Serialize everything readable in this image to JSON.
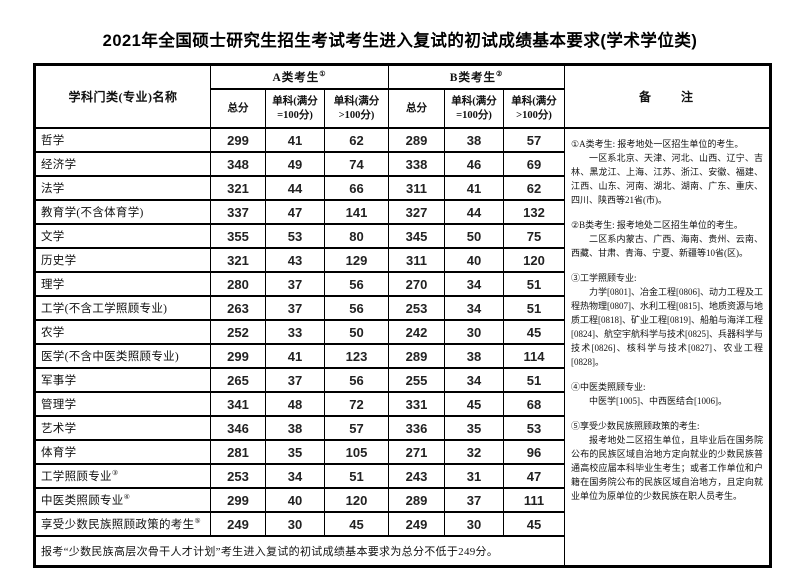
{
  "title": "2021年全国硕士研究生招生考试考生进入复试的初试成绩基本要求(学术学位类)",
  "table": {
    "header": {
      "category": "学科门类(专业)名称",
      "group_a": {
        "label": "A类考生",
        "sup": "①"
      },
      "group_b": {
        "label": "B类考生",
        "sup": "②"
      },
      "sub_columns": [
        "总分",
        "单科(满分\n=100分)",
        "单科(满分\n>100分)"
      ],
      "notes_label": "备　　注"
    },
    "rows": [
      {
        "label": "哲学",
        "sup": "",
        "values": [
          299,
          41,
          62,
          289,
          38,
          57
        ]
      },
      {
        "label": "经济学",
        "sup": "",
        "values": [
          348,
          49,
          74,
          338,
          46,
          69
        ]
      },
      {
        "label": "法学",
        "sup": "",
        "values": [
          321,
          44,
          66,
          311,
          41,
          62
        ]
      },
      {
        "label": "教育学(不含体育学)",
        "sup": "",
        "values": [
          337,
          47,
          141,
          327,
          44,
          132
        ]
      },
      {
        "label": "文学",
        "sup": "",
        "values": [
          355,
          53,
          80,
          345,
          50,
          75
        ]
      },
      {
        "label": "历史学",
        "sup": "",
        "values": [
          321,
          43,
          129,
          311,
          40,
          120
        ]
      },
      {
        "label": "理学",
        "sup": "",
        "values": [
          280,
          37,
          56,
          270,
          34,
          51
        ]
      },
      {
        "label": "工学(不含工学照顾专业)",
        "sup": "",
        "values": [
          263,
          37,
          56,
          253,
          34,
          51
        ]
      },
      {
        "label": "农学",
        "sup": "",
        "values": [
          252,
          33,
          50,
          242,
          30,
          45
        ]
      },
      {
        "label": "医学(不含中医类照顾专业)",
        "sup": "",
        "values": [
          299,
          41,
          123,
          289,
          38,
          114
        ]
      },
      {
        "label": "军事学",
        "sup": "",
        "values": [
          265,
          37,
          56,
          255,
          34,
          51
        ]
      },
      {
        "label": "管理学",
        "sup": "",
        "values": [
          341,
          48,
          72,
          331,
          45,
          68
        ]
      },
      {
        "label": "艺术学",
        "sup": "",
        "values": [
          346,
          38,
          57,
          336,
          35,
          53
        ]
      },
      {
        "label": "体育学",
        "sup": "",
        "values": [
          281,
          35,
          105,
          271,
          32,
          96
        ]
      },
      {
        "label": "工学照顾专业",
        "sup": "③",
        "values": [
          253,
          34,
          51,
          243,
          31,
          47
        ]
      },
      {
        "label": "中医类照顾专业",
        "sup": "④",
        "values": [
          299,
          40,
          120,
          289,
          37,
          111
        ]
      },
      {
        "label": "享受少数民族照顾政策的考生",
        "sup": "⑤",
        "values": [
          249,
          30,
          45,
          249,
          30,
          45
        ]
      }
    ],
    "footnote": "报考“少数民族高层次骨干人才计划”考生进入复试的初试成绩基本要求为总分不低于249分。"
  },
  "notes": {
    "paragraphs": [
      {
        "text": "①A类考生: 报考地处一区招生单位的考生。",
        "indent": false,
        "gap": false
      },
      {
        "text": "一区系北京、天津、河北、山西、辽宁、吉林、黑龙江、上海、江苏、浙江、安徽、福建、江西、山东、河南、湖北、湖南、广东、重庆、四川、陕西等21省(市)。",
        "indent": true,
        "gap": false
      },
      {
        "text": "②B类考生: 报考地处二区招生单位的考生。",
        "indent": false,
        "gap": true
      },
      {
        "text": "二区系内蒙古、广西、海南、贵州、云南、西藏、甘肃、青海、宁夏、新疆等10省(区)。",
        "indent": true,
        "gap": false
      },
      {
        "text": "③工学照顾专业:",
        "indent": false,
        "gap": true
      },
      {
        "text": "力学[0801]、冶金工程[0806]、动力工程及工程热物理[0807]、水利工程[0815]、地质资源与地质工程[0818]、矿业工程[0819]、船舶与海洋工程[0824]、航空宇航科学与技术[0825]、兵器科学与技术[0826]、核科学与技术[0827]、农业工程[0828]。",
        "indent": true,
        "gap": false
      },
      {
        "text": "④中医类照顾专业:",
        "indent": false,
        "gap": true
      },
      {
        "text": "中医学[1005]、中西医结合[1006]。",
        "indent": true,
        "gap": false
      },
      {
        "text": "⑤享受少数民族照顾政策的考生:",
        "indent": false,
        "gap": true
      },
      {
        "text": "报考地处二区招生单位，且毕业后在国务院公布的民族区域自治地方定向就业的少数民族普通高校应届本科毕业生考生；或者工作单位和户籍在国务院公布的民族区域自治地方，且定向就业单位为原单位的少数民族在职人员考生。",
        "indent": true,
        "gap": false
      }
    ]
  }
}
